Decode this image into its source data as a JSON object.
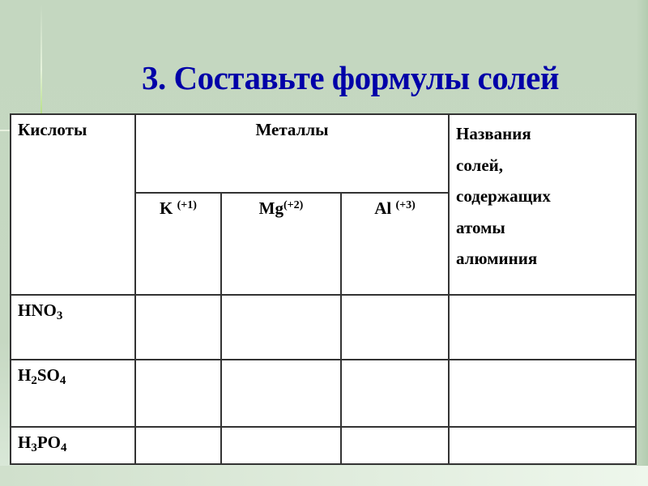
{
  "title": "3. Составьте формулы солей",
  "table": {
    "col_acids": "Кислоты",
    "col_metals": "Металлы",
    "col_names": [
      "Названия",
      "солей,",
      "содержащих",
      "атомы",
      "алюминия"
    ],
    "metals": [
      {
        "symbol": "K",
        "charge": "(+1)"
      },
      {
        "symbol": "Mg",
        "charge": "(+2)"
      },
      {
        "symbol": "Al",
        "charge": "(+3)"
      }
    ],
    "acids": [
      {
        "parts": [
          "H",
          "",
          "NO",
          "3"
        ]
      },
      {
        "parts": [
          "H",
          "2",
          "SO",
          "4"
        ]
      },
      {
        "parts": [
          "H",
          "3",
          "PO",
          "4"
        ]
      }
    ]
  },
  "colors": {
    "background": "#c4d7c0",
    "title": "#0000a8"
  }
}
